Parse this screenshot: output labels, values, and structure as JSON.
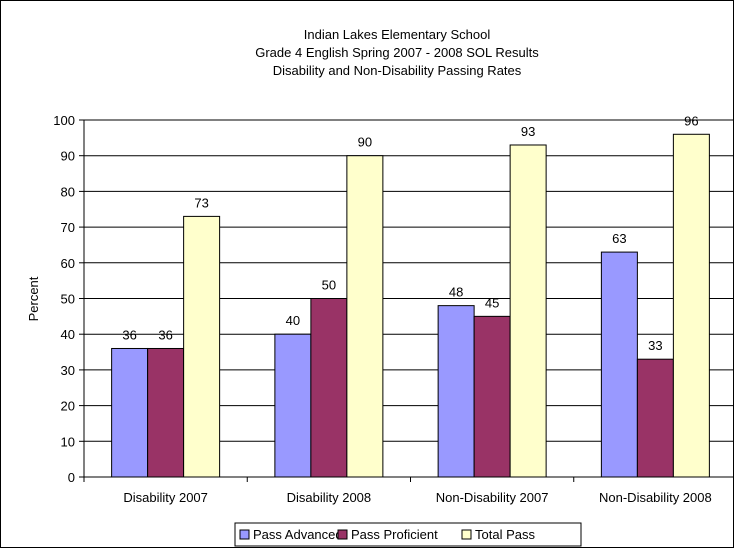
{
  "chart_data": {
    "type": "bar",
    "title_lines": [
      "Indian Lakes Elementary School",
      "Grade 4 English Spring 2007 - 2008 SOL Results",
      "Disability and Non-Disability Passing Rates"
    ],
    "ylabel": "Percent",
    "xlabel": "",
    "ylim": [
      0,
      100
    ],
    "yticks": [
      0,
      10,
      20,
      30,
      40,
      50,
      60,
      70,
      80,
      90,
      100
    ],
    "grid": true,
    "legend_position": "bottom",
    "categories": [
      "Disability 2007",
      "Disability 2008",
      "Non-Disability 2007",
      "Non-Disability 2008"
    ],
    "series": [
      {
        "name": "Pass Advanced",
        "color": "#9999FF",
        "values": [
          36,
          40,
          48,
          63
        ]
      },
      {
        "name": "Pass Proficient",
        "color": "#993366",
        "values": [
          36,
          50,
          45,
          33
        ]
      },
      {
        "name": "Total Pass",
        "color": "#FFFFCC",
        "values": [
          73,
          90,
          93,
          96
        ]
      }
    ]
  }
}
